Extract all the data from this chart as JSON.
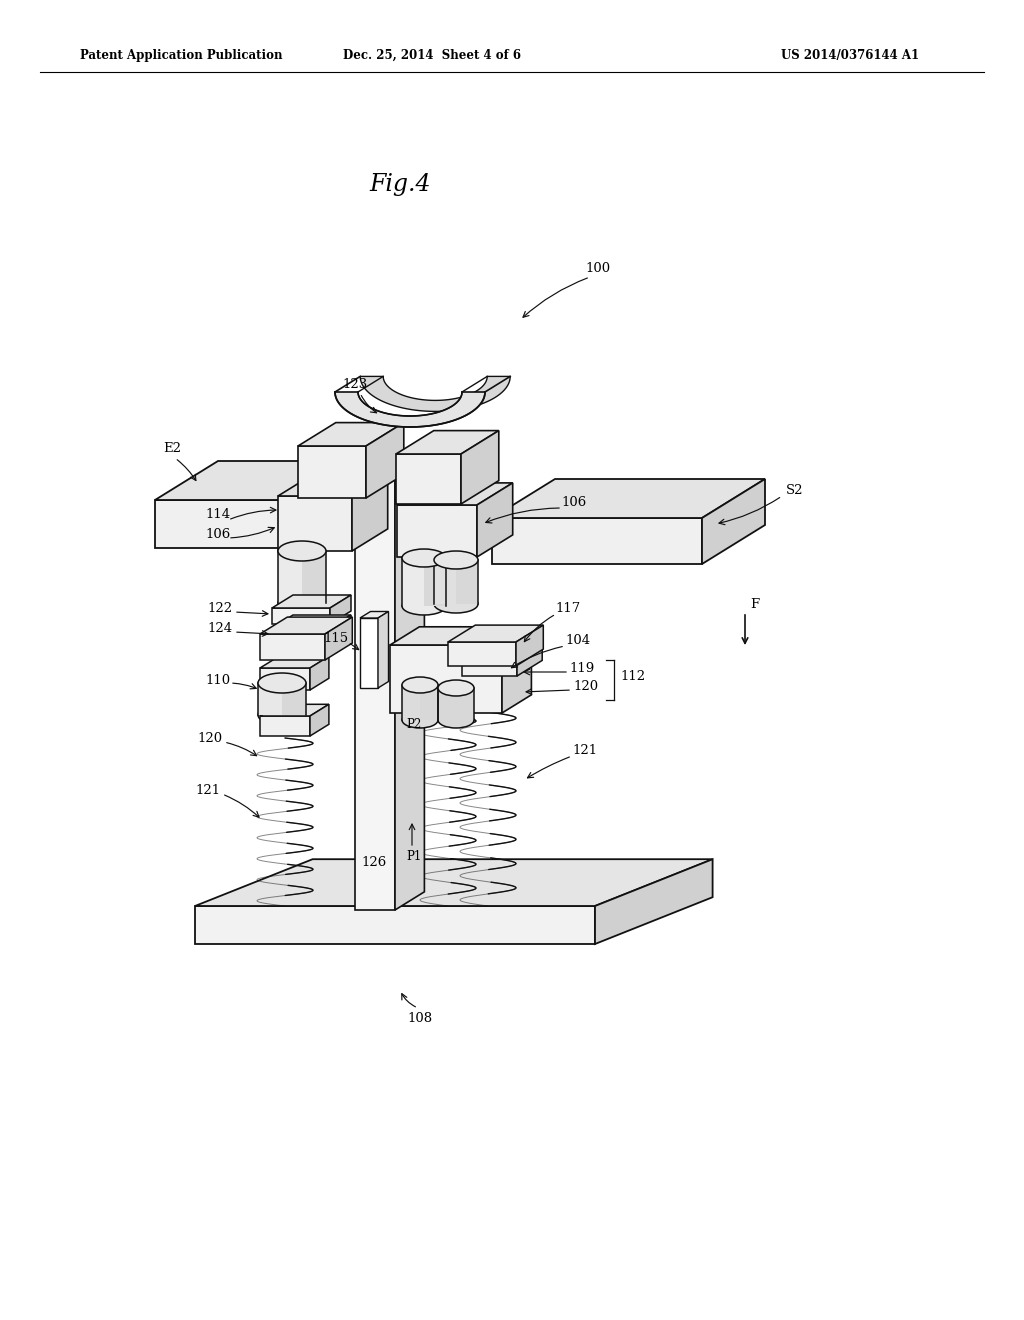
{
  "bg_color": "#ffffff",
  "header_left": "Patent Application Publication",
  "header_mid": "Dec. 25, 2014  Sheet 4 of 6",
  "header_right": "US 2014/0376144 A1",
  "fig_title": "Fig.4",
  "lc": "#111111",
  "ff": "#f8f8f8",
  "ft": "#e2e2e2",
  "fs_": "#cccccc",
  "anno_fs": 9.5,
  "header_fs": 8.5,
  "title_fs": 17
}
